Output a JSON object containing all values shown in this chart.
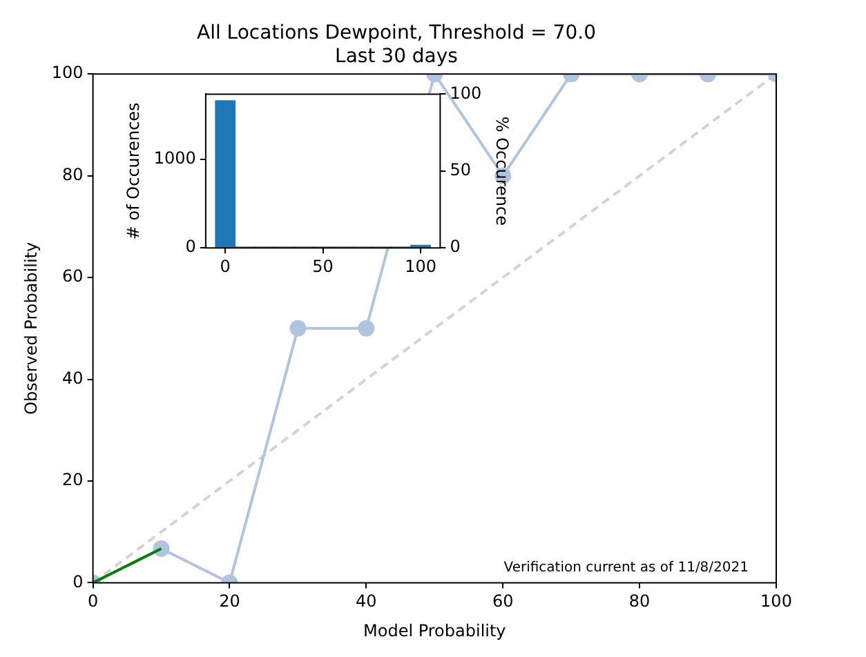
{
  "chart_data": [
    {
      "type": "line",
      "title": "All Locations Dewpoint, Threshold = 70.0",
      "subtitle": "Last 30 days",
      "xlabel": "Model Probability",
      "ylabel": "Observed Probability",
      "xlim": [
        0,
        100
      ],
      "ylim": [
        0,
        100
      ],
      "xticks": [
        0,
        20,
        40,
        60,
        80,
        100
      ],
      "yticks": [
        0,
        20,
        40,
        60,
        80,
        100
      ],
      "grid": false,
      "legend": false,
      "series": [
        {
          "x": [
            0,
            100
          ],
          "values": [
            0,
            100
          ],
          "color": "#d3d3d3",
          "line_style": "dashed",
          "marker": "none"
        },
        {
          "x": [
            0,
            10,
            20,
            30,
            40,
            50,
            60,
            70,
            80,
            90,
            100
          ],
          "values": [
            0,
            6.7,
            0,
            50,
            50,
            100,
            80,
            100,
            100,
            100,
            100
          ],
          "color": "#b0c4de",
          "line_style": "solid",
          "marker": "circle"
        },
        {
          "x": [
            0,
            10
          ],
          "values": [
            0,
            6.7
          ],
          "color": "#008000",
          "line_style": "solid",
          "marker": "none"
        }
      ],
      "annotations": [
        "Verification current as of 11/8/2021"
      ]
    },
    {
      "type": "histogram",
      "ylabel": "# of Occurences",
      "y2label": "% Occurence",
      "bins": [
        -5,
        5,
        15,
        25,
        35,
        45,
        55,
        65,
        75,
        85,
        95,
        105
      ],
      "values": [
        1660,
        10,
        10,
        10,
        10,
        10,
        10,
        10,
        10,
        10,
        30
      ],
      "color": "#1f77b4",
      "xlim": [
        -10,
        110
      ],
      "xticks": [
        0,
        50,
        100
      ],
      "ylim": [
        0,
        1735
      ],
      "yticks": [
        0,
        1000
      ],
      "y2lim": [
        0,
        100
      ],
      "y2ticks": [
        0,
        50,
        100
      ],
      "grid": false,
      "legend": false
    }
  ]
}
